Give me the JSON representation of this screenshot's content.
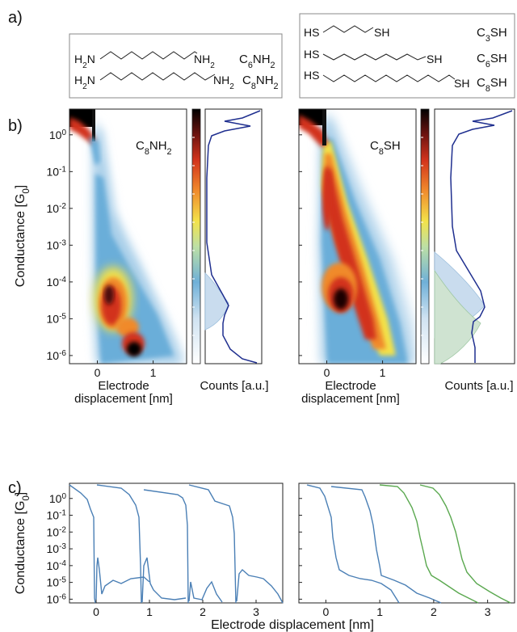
{
  "panel_labels": {
    "a": "a)",
    "b": "b)",
    "c": "c)"
  },
  "molecules": {
    "amines": [
      {
        "left": "H2N",
        "right": "NH2",
        "name": "C6NH2"
      },
      {
        "left": "H2N",
        "right": "NH2",
        "name": "C8NH2"
      }
    ],
    "thiols": [
      {
        "left": "HS",
        "right": "SH",
        "name": "C3SH"
      },
      {
        "left": "HS",
        "right": "SH",
        "name": "C6SH"
      },
      {
        "left": "HS",
        "right": "SH",
        "name": "C8SH"
      }
    ]
  },
  "colors": {
    "blue_trace": "#4a7fb5",
    "green_trace": "#5aa84f",
    "hist_line": "#1f2f8f",
    "hist_fill": "#c9dcee",
    "hist_fill_green": "#cfe3d1",
    "frame": "#222222"
  },
  "chart_data": [
    {
      "id": "b-left",
      "type": "heatmap",
      "annotation": "C8NH2",
      "ylabel": "Conductance [G0]",
      "xlabel": "Electrode displacement [nm]",
      "y_scale": "log",
      "ylim": [
        6e-07,
        5
      ],
      "xlim": [
        -0.5,
        1.6
      ],
      "x_ticks": [
        0,
        1
      ],
      "y_ticks": [
        "10^0",
        "10^-1",
        "10^-2",
        "10^-3",
        "10^-4",
        "10^-5",
        "10^-6"
      ],
      "histogram": {
        "xlabel": "Counts [a.u.]",
        "peak_log10G": -4.8
      }
    },
    {
      "id": "b-right",
      "type": "heatmap",
      "annotation": "C8SH",
      "xlabel": "Electrode displacement [nm]",
      "y_scale": "log",
      "ylim": [
        6e-07,
        5
      ],
      "xlim": [
        -0.5,
        1.6
      ],
      "x_ticks": [
        0,
        1
      ],
      "histogram": {
        "xlabel": "Counts [a.u.]",
        "peak_log10G": -4.7
      }
    },
    {
      "id": "c",
      "type": "line",
      "ylabel": "Conductance [G0]",
      "xlabel": "Electrode displacement [nm]",
      "y_scale": "log",
      "ylim": [
        6e-07,
        8
      ],
      "left_xlim": [
        -0.5,
        3.5
      ],
      "right_xlim": [
        -0.5,
        3.5
      ],
      "x_ticks": [
        0,
        1,
        2,
        3
      ],
      "left_traces_color": "blue",
      "right_traces_colors": [
        "blue",
        "blue",
        "green",
        "green"
      ]
    }
  ]
}
